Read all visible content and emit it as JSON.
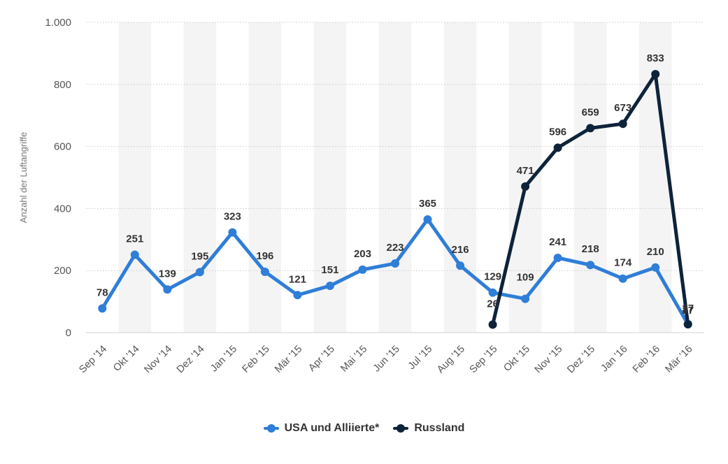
{
  "chart_data": {
    "type": "line",
    "ylabel": "Anzahl der Luftangriffe",
    "ylim": [
      0,
      1000
    ],
    "yticks": [
      0,
      200,
      400,
      600,
      800,
      1000
    ],
    "ytick_labels": [
      "0",
      "200",
      "400",
      "600",
      "800",
      "1.000"
    ],
    "categories": [
      "Sep '14",
      "Okt '14",
      "Nov '14",
      "Dez '14",
      "Jan '15",
      "Feb '15",
      "Mär '15",
      "Apr '15",
      "Mai '15",
      "Jun '15",
      "Jul '15",
      "Aug '15",
      "Sep '15",
      "Okt '15",
      "Nov '15",
      "Dez '15",
      "Jan '16",
      "Feb '16",
      "Mär '16"
    ],
    "series": [
      {
        "name": "USA und Alliierte*",
        "color": "#2f7ed8",
        "values": [
          78,
          251,
          139,
          195,
          323,
          196,
          121,
          151,
          203,
          223,
          365,
          216,
          129,
          109,
          241,
          218,
          174,
          210,
          27
        ]
      },
      {
        "name": "Russland",
        "color": "#0d233a",
        "values": [
          null,
          null,
          null,
          null,
          null,
          null,
          null,
          null,
          null,
          null,
          null,
          null,
          26,
          471,
          596,
          659,
          673,
          833,
          27
        ]
      }
    ],
    "grid": true,
    "legend_position": "bottom-center"
  }
}
